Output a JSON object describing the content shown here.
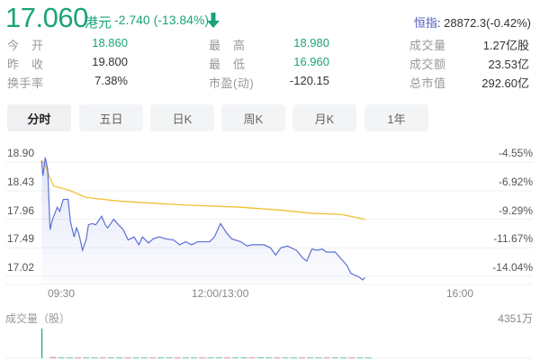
{
  "quote": {
    "price": "17.060",
    "currency": "港元",
    "change": "-2.740 (-13.84%)",
    "direction_icon": "arrow-down-icon",
    "index_label": "恒指",
    "index_value": ": 28872.3(-0.42%)"
  },
  "stats": [
    [
      {
        "label": "今　开",
        "value": "18.860",
        "green": true
      },
      {
        "label": "最　高",
        "value": "18.980",
        "green": true
      },
      {
        "label": "成交量",
        "value": "1.27亿股"
      }
    ],
    [
      {
        "label": "昨　收",
        "value": "19.800"
      },
      {
        "label": "最　低",
        "value": "16.960",
        "green": true
      },
      {
        "label": "成交额",
        "value": "23.53亿"
      }
    ],
    [
      {
        "label": "换手率",
        "value": "7.38%"
      },
      {
        "label": "市盈(动)",
        "value": "-120.15"
      },
      {
        "label": "总市值",
        "value": "292.60亿"
      }
    ]
  ],
  "tabs": [
    {
      "label": "分时",
      "active": true
    },
    {
      "label": "五日"
    },
    {
      "label": "日K"
    },
    {
      "label": "周K"
    },
    {
      "label": "月K"
    },
    {
      "label": "1年"
    }
  ],
  "colors": {
    "up_down_green": "#1aa37a",
    "price_line": "#5b6fd6",
    "avg_line": "#f0c030",
    "index_label": "#4a58b8"
  },
  "chart_data": {
    "type": "line",
    "y_ticks": [
      "18.90",
      "18.43",
      "17.96",
      "17.49",
      "17.02"
    ],
    "y_pct_ticks": [
      "-4.55%",
      "-6.92%",
      "-9.29%",
      "-11.67%",
      "-14.04%"
    ],
    "x_ticks": [
      "09:30",
      "12:00/13:00",
      "16:00"
    ],
    "grid": true,
    "series": [
      {
        "role": "price",
        "points": [
          [
            "09:25",
            18.93
          ],
          [
            "09:26",
            18.68
          ],
          [
            "09:28",
            18.98
          ],
          [
            "09:30",
            18.78
          ],
          [
            "09:32",
            17.79
          ],
          [
            "09:34",
            17.96
          ],
          [
            "09:36",
            18.06
          ],
          [
            "09:38",
            18.16
          ],
          [
            "09:40",
            18.09
          ],
          [
            "09:43",
            18.29
          ],
          [
            "09:47",
            18.29
          ],
          [
            "09:49",
            17.92
          ],
          [
            "09:52",
            17.67
          ],
          [
            "09:54",
            17.82
          ],
          [
            "09:56",
            17.72
          ],
          [
            "09:59",
            17.45
          ],
          [
            "10:02",
            17.62
          ],
          [
            "10:04",
            17.87
          ],
          [
            "10:07",
            17.89
          ],
          [
            "10:10",
            17.87
          ],
          [
            "10:15",
            18.01
          ],
          [
            "10:18",
            17.87
          ],
          [
            "10:20",
            17.82
          ],
          [
            "10:25",
            17.96
          ],
          [
            "10:29",
            17.87
          ],
          [
            "10:33",
            17.79
          ],
          [
            "10:37",
            17.62
          ],
          [
            "10:42",
            17.67
          ],
          [
            "10:46",
            17.54
          ],
          [
            "10:49",
            17.67
          ],
          [
            "10:54",
            17.57
          ],
          [
            "10:58",
            17.64
          ],
          [
            "11:03",
            17.67
          ],
          [
            "11:08",
            17.64
          ],
          [
            "11:15",
            17.62
          ],
          [
            "11:20",
            17.54
          ],
          [
            "11:25",
            17.59
          ],
          [
            "11:30",
            17.54
          ],
          [
            "11:35",
            17.59
          ],
          [
            "11:45",
            17.59
          ],
          [
            "11:49",
            17.67
          ],
          [
            "11:54",
            17.89
          ],
          [
            "11:59",
            17.74
          ],
          [
            "13:03",
            17.64
          ],
          [
            "13:10",
            17.59
          ],
          [
            "13:15",
            17.52
          ],
          [
            "13:19",
            17.54
          ],
          [
            "13:28",
            17.54
          ],
          [
            "13:33",
            17.49
          ],
          [
            "13:37",
            17.37
          ],
          [
            "13:41",
            17.49
          ],
          [
            "13:46",
            17.52
          ],
          [
            "13:53",
            17.45
          ],
          [
            "13:58",
            17.32
          ],
          [
            "14:01",
            17.27
          ],
          [
            "14:05",
            17.47
          ],
          [
            "14:09",
            17.45
          ],
          [
            "14:13",
            17.47
          ],
          [
            "14:16",
            17.42
          ],
          [
            "14:23",
            17.42
          ],
          [
            "14:27",
            17.32
          ],
          [
            "14:32",
            17.2
          ],
          [
            "14:35",
            17.07
          ],
          [
            "14:42",
            17.0
          ],
          [
            "14:44",
            16.96
          ],
          [
            "14:46",
            17.0
          ]
        ]
      },
      {
        "role": "average",
        "points": [
          [
            "09:25",
            18.93
          ],
          [
            "09:28",
            18.86
          ],
          [
            "09:32",
            18.63
          ],
          [
            "09:35",
            18.51
          ],
          [
            "09:48",
            18.44
          ],
          [
            "10:02",
            18.32
          ],
          [
            "10:30",
            18.26
          ],
          [
            "11:20",
            18.2
          ],
          [
            "13:10",
            18.16
          ],
          [
            "13:42",
            18.11
          ],
          [
            "14:05",
            18.06
          ],
          [
            "14:28",
            18.04
          ],
          [
            "14:46",
            17.96
          ]
        ]
      }
    ],
    "volume": {
      "label": "成交量（股）",
      "max_label": "4351万",
      "max": 4351,
      "values": [
        4351,
        180,
        90,
        120,
        60,
        80,
        50,
        70,
        40,
        60,
        55,
        45,
        50,
        40,
        35,
        45,
        40,
        38,
        30,
        35,
        42,
        30,
        28,
        33,
        40,
        30,
        25,
        35,
        30,
        28,
        26,
        32,
        40,
        38,
        35,
        45,
        30,
        42,
        38,
        50
      ]
    }
  }
}
